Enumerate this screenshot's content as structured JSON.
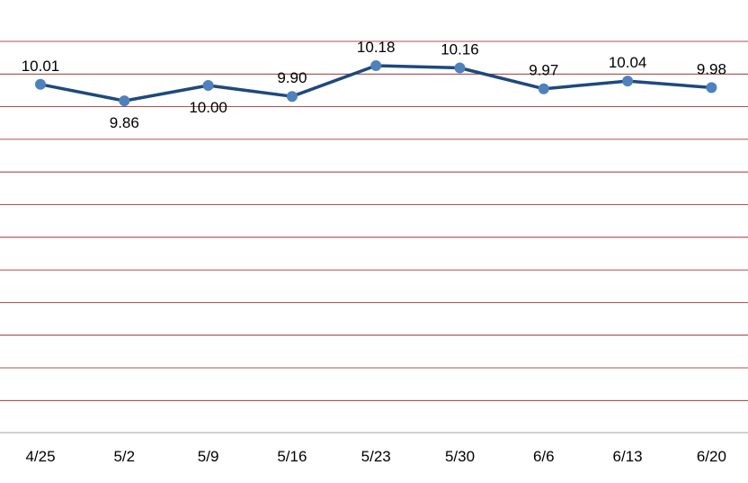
{
  "chart_data": {
    "type": "line",
    "categories": [
      "4/25",
      "5/2",
      "5/9",
      "5/16",
      "5/23",
      "5/30",
      "6/6",
      "6/13",
      "6/20"
    ],
    "series": [
      {
        "values": [
          10.01,
          9.86,
          10.0,
          9.9,
          10.18,
          10.16,
          9.97,
          10.04,
          9.98
        ],
        "labels": [
          "10.01",
          "9.86",
          "10.00",
          "9.90",
          "10.18",
          "10.16",
          "9.97",
          "10.04",
          "9.98"
        ],
        "label_position": [
          "above",
          "below",
          "below",
          "above",
          "above",
          "above",
          "above",
          "above",
          "above"
        ]
      }
    ],
    "title": "",
    "xlabel": "",
    "ylabel": "",
    "grid": true,
    "legend": "none",
    "colors": {
      "line": "#1f497d",
      "marker": "#4f81bd",
      "grid": "#8b1a1a",
      "axis": "#a6a6a6"
    }
  }
}
